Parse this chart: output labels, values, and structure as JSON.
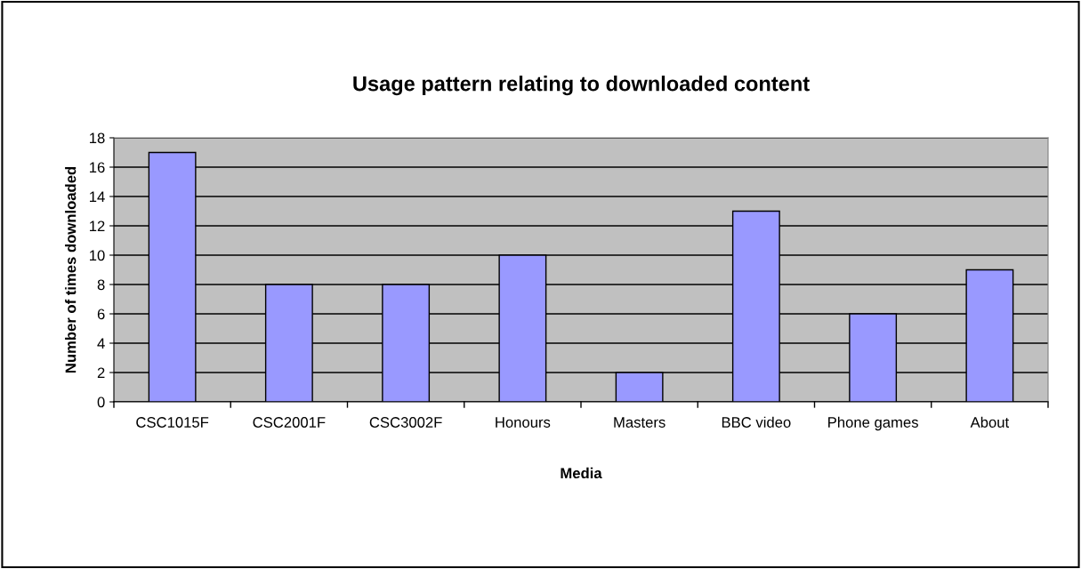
{
  "chart_data": {
    "type": "bar",
    "title": "Usage pattern relating to downloaded content",
    "xlabel": "Media",
    "ylabel": "Number of times downloaded",
    "categories": [
      "CSC1015F",
      "CSC2001F",
      "CSC3002F",
      "Honours",
      "Masters",
      "BBC video",
      "Phone games",
      "About"
    ],
    "values": [
      17,
      8,
      8,
      10,
      2,
      13,
      6,
      9
    ],
    "color": "#9999ff",
    "ylim": [
      0,
      18
    ],
    "yticks": [
      0,
      2,
      4,
      6,
      8,
      10,
      12,
      14,
      16,
      18
    ],
    "grid": "y",
    "legend": false
  }
}
